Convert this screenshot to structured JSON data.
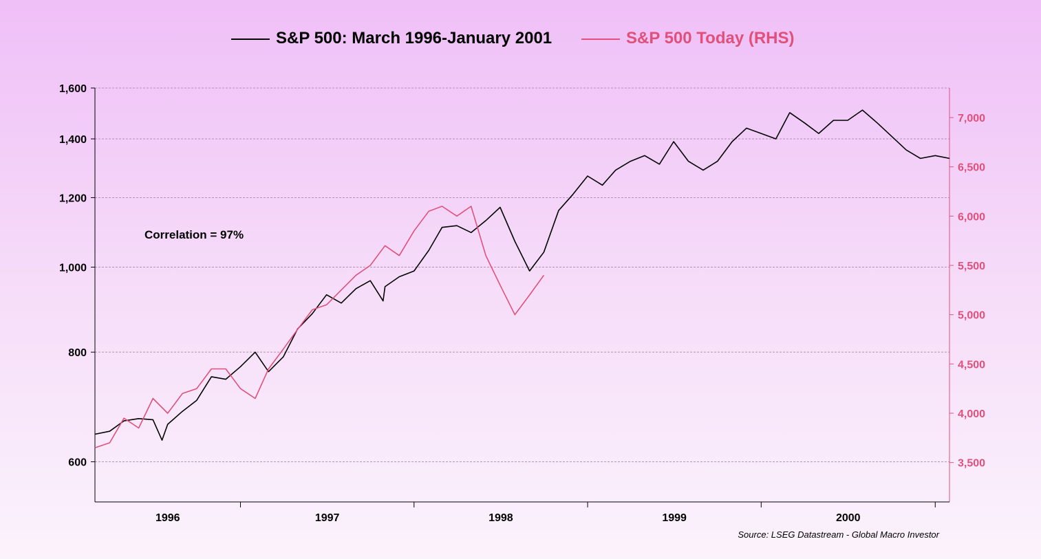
{
  "chart_data": {
    "type": "line",
    "title": "",
    "legend": {
      "placement": "top-center",
      "entries": [
        "S&P 500: March 1996-January 2001",
        "S&P 500 Today (RHS)"
      ]
    },
    "annotation": "Correlation = 97%",
    "source": "Source: LSEG Datastream - Global Macro Investor",
    "grid": true,
    "x_axis": {
      "type": "date",
      "range": [
        "1996-03-01",
        "2001-01-31"
      ],
      "tick_labels": [
        "1996",
        "1997",
        "1998",
        "1999",
        "2000"
      ]
    },
    "y_left": {
      "scale": "log",
      "range": [
        540,
        1600
      ],
      "ticks": [
        600,
        800,
        1000,
        1200,
        1400,
        1600
      ],
      "tick_labels": [
        "600",
        "800",
        "1,000",
        "1,200",
        "1,400",
        "1,600"
      ]
    },
    "y_right": {
      "scale": "linear",
      "range": [
        3100,
        7300
      ],
      "ticks": [
        3500,
        4000,
        4500,
        5000,
        5500,
        6000,
        6500,
        7000
      ],
      "tick_labels": [
        "3,500",
        "4,000",
        "4,500",
        "5,000",
        "5,500",
        "6,000",
        "6,500",
        "7,000"
      ]
    },
    "series": [
      {
        "name": "S&P 500: March 1996-January 2001",
        "axis": "left",
        "color": "#000000",
        "x": [
          "1996-03-01",
          "1996-04-01",
          "1996-05-01",
          "1996-06-01",
          "1996-07-01",
          "1996-07-20",
          "1996-08-01",
          "1996-09-01",
          "1996-10-01",
          "1996-11-01",
          "1996-12-01",
          "1997-01-01",
          "1997-02-01",
          "1997-03-01",
          "1997-04-01",
          "1997-05-01",
          "1997-06-01",
          "1997-07-01",
          "1997-08-01",
          "1997-09-01",
          "1997-10-01",
          "1997-10-28",
          "1997-11-01",
          "1997-12-01",
          "1998-01-01",
          "1998-02-01",
          "1998-03-01",
          "1998-04-01",
          "1998-05-01",
          "1998-06-01",
          "1998-07-01",
          "1998-08-01",
          "1998-09-01",
          "1998-10-01",
          "1998-11-01",
          "1998-12-01",
          "1999-01-01",
          "1999-02-01",
          "1999-03-01",
          "1999-04-01",
          "1999-05-01",
          "1999-06-01",
          "1999-07-01",
          "1999-08-01",
          "1999-09-01",
          "1999-10-01",
          "1999-11-01",
          "1999-12-01",
          "2000-01-01",
          "2000-02-01",
          "2000-03-01",
          "2000-04-01",
          "2000-05-01",
          "2000-06-01",
          "2000-07-01",
          "2000-08-01",
          "2000-09-01",
          "2000-10-01",
          "2000-11-01",
          "2000-12-01",
          "2001-01-01",
          "2001-01-31"
        ],
        "values": [
          645,
          650,
          668,
          672,
          670,
          635,
          662,
          685,
          705,
          750,
          745,
          770,
          800,
          760,
          790,
          850,
          885,
          930,
          910,
          945,
          965,
          915,
          950,
          975,
          990,
          1045,
          1110,
          1115,
          1095,
          1130,
          1170,
          1070,
          990,
          1040,
          1160,
          1210,
          1270,
          1240,
          1290,
          1320,
          1340,
          1310,
          1390,
          1320,
          1290,
          1320,
          1390,
          1440,
          1420,
          1400,
          1500,
          1460,
          1420,
          1470,
          1470,
          1510,
          1460,
          1410,
          1360,
          1330,
          1340,
          1330
        ]
      },
      {
        "name": "S&P 500 Today (RHS)",
        "axis": "right",
        "color": "#e0507a",
        "x": [
          "1996-03-01",
          "1996-04-01",
          "1996-05-01",
          "1996-06-01",
          "1996-07-01",
          "1996-08-01",
          "1996-09-01",
          "1996-10-01",
          "1996-11-01",
          "1996-12-01",
          "1997-01-01",
          "1997-02-01",
          "1997-03-01",
          "1997-04-01",
          "1997-05-01",
          "1997-06-01",
          "1997-07-01",
          "1997-08-01",
          "1997-09-01",
          "1997-10-01",
          "1997-11-01",
          "1997-12-01",
          "1998-01-01",
          "1998-02-01",
          "1998-03-01",
          "1998-04-01",
          "1998-05-01",
          "1998-06-01",
          "1998-07-01",
          "1998-08-01",
          "1998-09-01",
          "1998-10-01"
        ],
        "values": [
          3650,
          3700,
          3950,
          3850,
          4150,
          4000,
          4200,
          4250,
          4450,
          4450,
          4250,
          4150,
          4450,
          4650,
          4850,
          5050,
          5100,
          5250,
          5400,
          5500,
          5700,
          5600,
          5850,
          6050,
          6100,
          6000,
          6100,
          5600,
          5300,
          5000,
          5200,
          5400
        ]
      }
    ]
  }
}
